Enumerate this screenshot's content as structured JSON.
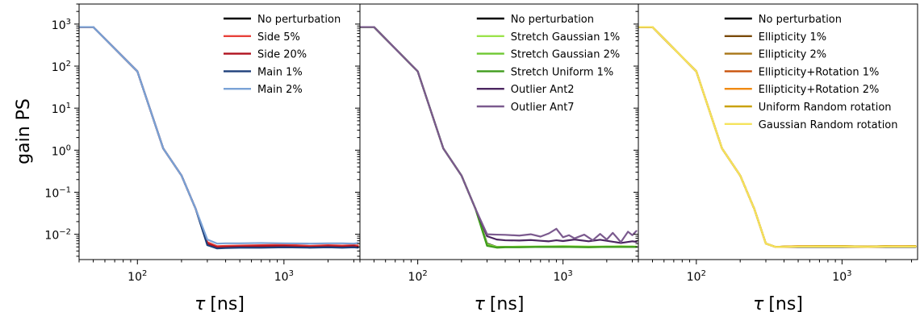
{
  "chart_data": [
    {
      "type": "line",
      "xscale": "log",
      "yscale": "log",
      "xlim": [
        40,
        3300
      ],
      "ylim": [
        0.0025,
        3000
      ],
      "xticks": [
        {
          "value": 100,
          "base": "10",
          "exp": "2"
        },
        {
          "value": 1000,
          "base": "10",
          "exp": "3"
        }
      ],
      "yticks": [
        {
          "value": 1000,
          "base": "10",
          "exp": "3"
        },
        {
          "value": 100,
          "base": "10",
          "exp": "2"
        },
        {
          "value": 10,
          "base": "10",
          "exp": "1"
        },
        {
          "value": 1,
          "base": "10",
          "exp": "0"
        },
        {
          "value": 0.1,
          "base": "10",
          "exp": "−1"
        },
        {
          "value": 0.01,
          "base": "10",
          "exp": "−2"
        }
      ],
      "ylabel": "gain PS",
      "xlabel_main": "τ",
      "xlabel_unit": "[ns]",
      "legend_position": "top-right",
      "grid": false,
      "series": [
        {
          "name": "No perturbation",
          "color": "#000000",
          "x": [
            40,
            50,
            100,
            150,
            200,
            250,
            300,
            350,
            400,
            500,
            700,
            1000,
            1500,
            2000,
            2500,
            3000,
            3200
          ],
          "y": [
            850,
            850,
            75,
            1.1,
            0.25,
            0.04,
            0.006,
            0.005,
            0.005,
            0.005,
            0.005,
            0.005,
            0.005,
            0.005,
            0.005,
            0.005,
            0.005
          ]
        },
        {
          "name": "Side 5%",
          "color": "#e8413a",
          "x": [
            40,
            50,
            100,
            150,
            200,
            250,
            300,
            350,
            400,
            500,
            700,
            1000,
            1500,
            2000,
            2500,
            3000,
            3200
          ],
          "y": [
            850,
            850,
            75,
            1.1,
            0.25,
            0.04,
            0.0065,
            0.0052,
            0.0053,
            0.0054,
            0.0055,
            0.0057,
            0.0053,
            0.0055,
            0.0054,
            0.0055,
            0.0054
          ]
        },
        {
          "name": "Side 20%",
          "color": "#b0111e",
          "x": [
            40,
            50,
            100,
            150,
            200,
            250,
            300,
            350,
            400,
            500,
            700,
            1000,
            1500,
            2000,
            2500,
            3000,
            3200
          ],
          "y": [
            850,
            850,
            75,
            1.1,
            0.25,
            0.04,
            0.006,
            0.0049,
            0.005,
            0.0051,
            0.0052,
            0.0053,
            0.005,
            0.0052,
            0.0051,
            0.0053,
            0.005
          ]
        },
        {
          "name": "Main 1%",
          "color": "#1d3f7a",
          "x": [
            40,
            50,
            100,
            150,
            200,
            250,
            300,
            350,
            400,
            500,
            700,
            1000,
            1500,
            2000,
            2500,
            3000,
            3200
          ],
          "y": [
            850,
            850,
            75,
            1.1,
            0.25,
            0.04,
            0.0055,
            0.0046,
            0.0047,
            0.0048,
            0.0048,
            0.0049,
            0.0048,
            0.0049,
            0.0048,
            0.0049,
            0.0048
          ]
        },
        {
          "name": "Main 2%",
          "color": "#7aa2d6",
          "x": [
            40,
            50,
            100,
            150,
            200,
            250,
            300,
            350,
            400,
            500,
            700,
            1000,
            1500,
            2000,
            2500,
            3000,
            3200
          ],
          "y": [
            850,
            850,
            75,
            1.1,
            0.25,
            0.04,
            0.0075,
            0.006,
            0.0061,
            0.0061,
            0.0062,
            0.0061,
            0.006,
            0.0061,
            0.0061,
            0.006,
            0.0062
          ]
        }
      ]
    },
    {
      "type": "line",
      "xscale": "log",
      "yscale": "log",
      "xlim": [
        40,
        3300
      ],
      "ylim": [
        0.0025,
        3000
      ],
      "xticks": [
        {
          "value": 100,
          "base": "10",
          "exp": "2"
        },
        {
          "value": 1000,
          "base": "10",
          "exp": "3"
        }
      ],
      "xlabel_main": "τ",
      "xlabel_unit": "[ns]",
      "legend_position": "top-right",
      "grid": false,
      "series": [
        {
          "name": "No perturbation",
          "color": "#000000",
          "x": [
            40,
            50,
            100,
            150,
            200,
            250,
            300,
            350,
            400,
            500,
            700,
            1000,
            1500,
            2000,
            2500,
            3000,
            3200
          ],
          "y": [
            850,
            850,
            75,
            1.1,
            0.25,
            0.04,
            0.006,
            0.005,
            0.005,
            0.005,
            0.005,
            0.005,
            0.005,
            0.005,
            0.005,
            0.005,
            0.005
          ]
        },
        {
          "name": "Stretch Gaussian 1%",
          "color": "#9be34b",
          "x": [
            40,
            50,
            100,
            150,
            200,
            250,
            300,
            350,
            400,
            500,
            700,
            1000,
            1500,
            2000,
            2500,
            3000,
            3200
          ],
          "y": [
            850,
            850,
            75,
            1.1,
            0.25,
            0.04,
            0.0058,
            0.005,
            0.005,
            0.0051,
            0.0051,
            0.0052,
            0.0051,
            0.0051,
            0.0052,
            0.0051,
            0.0051
          ]
        },
        {
          "name": "Stretch Gaussian 2%",
          "color": "#6ec832",
          "x": [
            40,
            50,
            100,
            150,
            200,
            250,
            300,
            350,
            400,
            500,
            700,
            1000,
            1500,
            2000,
            2500,
            3000,
            3200
          ],
          "y": [
            850,
            850,
            75,
            1.1,
            0.25,
            0.04,
            0.0055,
            0.0049,
            0.005,
            0.005,
            0.0051,
            0.0051,
            0.005,
            0.0051,
            0.005,
            0.0051,
            0.005
          ]
        },
        {
          "name": "Stretch Uniform 1%",
          "color": "#3f9c1c",
          "x": [
            40,
            50,
            100,
            150,
            200,
            250,
            300,
            350,
            400,
            500,
            700,
            1000,
            1500,
            2000,
            2500,
            3000,
            3200
          ],
          "y": [
            850,
            850,
            75,
            1.1,
            0.25,
            0.04,
            0.0053,
            0.0048,
            0.0049,
            0.0049,
            0.005,
            0.005,
            0.0049,
            0.005,
            0.005,
            0.005,
            0.005
          ]
        },
        {
          "name": "Outlier Ant2",
          "color": "#4b2660",
          "x": [
            40,
            50,
            100,
            150,
            200,
            250,
            300,
            350,
            400,
            500,
            600,
            700,
            800,
            900,
            1000,
            1200,
            1500,
            1800,
            2000,
            2500,
            3000,
            3200
          ],
          "y": [
            850,
            850,
            75,
            1.1,
            0.25,
            0.04,
            0.009,
            0.0075,
            0.0072,
            0.0071,
            0.0073,
            0.007,
            0.0068,
            0.0072,
            0.0069,
            0.0075,
            0.0068,
            0.0074,
            0.007,
            0.0062,
            0.0068,
            0.0066
          ]
        },
        {
          "name": "Outlier Ant7",
          "color": "#7b5a8e",
          "x": [
            40,
            50,
            100,
            150,
            200,
            250,
            300,
            350,
            400,
            500,
            600,
            700,
            800,
            900,
            1000,
            1100,
            1200,
            1400,
            1600,
            1800,
            2000,
            2200,
            2500,
            2800,
            3000,
            3200
          ],
          "y": [
            850,
            850,
            75,
            1.1,
            0.25,
            0.04,
            0.01,
            0.0098,
            0.0097,
            0.0093,
            0.01,
            0.0088,
            0.0105,
            0.0135,
            0.0085,
            0.0095,
            0.008,
            0.0098,
            0.0072,
            0.0102,
            0.0075,
            0.0108,
            0.0065,
            0.0115,
            0.0095,
            0.012
          ]
        }
      ]
    },
    {
      "type": "line",
      "xscale": "log",
      "yscale": "log",
      "xlim": [
        40,
        3300
      ],
      "ylim": [
        0.0025,
        3000
      ],
      "xticks": [
        {
          "value": 100,
          "base": "10",
          "exp": "2"
        },
        {
          "value": 1000,
          "base": "10",
          "exp": "3"
        }
      ],
      "xlabel_main": "τ",
      "xlabel_unit": "[ns]",
      "legend_position": "top-right",
      "grid": false,
      "series": [
        {
          "name": "No perturbation",
          "color": "#000000",
          "x": [
            40,
            50,
            100,
            150,
            200,
            250,
            300,
            350,
            400,
            500,
            700,
            1000,
            1500,
            2000,
            2500,
            3000,
            3200
          ],
          "y": [
            850,
            850,
            75,
            1.1,
            0.25,
            0.04,
            0.006,
            0.005,
            0.005,
            0.005,
            0.005,
            0.005,
            0.005,
            0.005,
            0.005,
            0.005,
            0.005
          ]
        },
        {
          "name": "Ellipticity 1%",
          "color": "#7a4a0a",
          "x": [
            40,
            50,
            100,
            150,
            200,
            250,
            300,
            350,
            400,
            500,
            700,
            1000,
            1500,
            2000,
            2500,
            3000,
            3200
          ],
          "y": [
            850,
            850,
            75,
            1.1,
            0.25,
            0.04,
            0.006,
            0.005,
            0.005,
            0.0051,
            0.0051,
            0.0051,
            0.005,
            0.0051,
            0.0051,
            0.0051,
            0.0051
          ]
        },
        {
          "name": "Ellipticity 2%",
          "color": "#a87516",
          "x": [
            40,
            50,
            100,
            150,
            200,
            250,
            300,
            350,
            400,
            500,
            700,
            1000,
            1500,
            2000,
            2500,
            3000,
            3200
          ],
          "y": [
            850,
            850,
            75,
            1.1,
            0.25,
            0.04,
            0.006,
            0.005,
            0.0051,
            0.0052,
            0.0052,
            0.0052,
            0.0051,
            0.0052,
            0.0052,
            0.0052,
            0.0052
          ]
        },
        {
          "name": "Ellipticity+Rotation 1%",
          "color": "#c9520a",
          "x": [
            40,
            50,
            100,
            150,
            200,
            250,
            300,
            350,
            400,
            500,
            700,
            1000,
            1500,
            2000,
            2500,
            3000,
            3200
          ],
          "y": [
            850,
            850,
            75,
            1.1,
            0.25,
            0.04,
            0.006,
            0.005,
            0.005,
            0.0051,
            0.0051,
            0.0051,
            0.005,
            0.0051,
            0.0051,
            0.0051,
            0.0051
          ]
        },
        {
          "name": "Ellipticity+Rotation 2%",
          "color": "#f08a12",
          "x": [
            40,
            50,
            100,
            150,
            200,
            250,
            300,
            350,
            400,
            500,
            700,
            1000,
            1500,
            2000,
            2500,
            3000,
            3200
          ],
          "y": [
            850,
            850,
            75,
            1.1,
            0.25,
            0.04,
            0.006,
            0.005,
            0.0051,
            0.0052,
            0.0052,
            0.0052,
            0.0051,
            0.0052,
            0.0052,
            0.0052,
            0.0052
          ]
        },
        {
          "name": "Uniform Random rotation",
          "color": "#c9a10a",
          "x": [
            40,
            50,
            100,
            150,
            200,
            250,
            300,
            350,
            400,
            500,
            700,
            1000,
            1500,
            2000,
            2500,
            3000,
            3200
          ],
          "y": [
            850,
            850,
            75,
            1.1,
            0.25,
            0.04,
            0.006,
            0.005,
            0.0051,
            0.0051,
            0.0052,
            0.0052,
            0.0051,
            0.0052,
            0.0051,
            0.0052,
            0.0052
          ]
        },
        {
          "name": "Gaussian Random rotation",
          "color": "#f5e35c",
          "x": [
            40,
            50,
            100,
            150,
            200,
            250,
            300,
            350,
            400,
            500,
            700,
            1000,
            1500,
            2000,
            2500,
            3000,
            3200
          ],
          "y": [
            850,
            850,
            75,
            1.1,
            0.25,
            0.04,
            0.006,
            0.005,
            0.005,
            0.0051,
            0.0051,
            0.0051,
            0.005,
            0.0051,
            0.0051,
            0.0051,
            0.0051
          ]
        }
      ]
    }
  ]
}
